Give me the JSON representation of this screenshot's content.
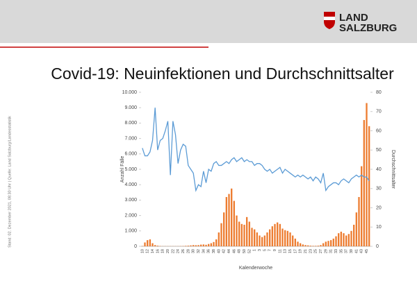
{
  "header": {
    "logo_line1": "LAND",
    "logo_line2": "SALZBURG"
  },
  "footnote": "Stand: 02. Dezember 2021, 08:30 Uhr | Quelle: Land Salzburg/Landesstatistik",
  "chart_data": {
    "type": "bar-line",
    "title": "Covid-19: Neuinfektionen und Durchschnittsalter",
    "x_label": "Kalenderwoche",
    "y_label": "Anzahl Fälle",
    "y2_label": "Durchschnittsalter",
    "categories": [
      10,
      null,
      12,
      null,
      14,
      null,
      16,
      null,
      18,
      null,
      20,
      null,
      22,
      null,
      24,
      null,
      26,
      null,
      28,
      null,
      30,
      null,
      32,
      null,
      34,
      null,
      36,
      null,
      38,
      null,
      40,
      null,
      42,
      null,
      44,
      null,
      46,
      null,
      48,
      null,
      50,
      null,
      52,
      null,
      1,
      null,
      3,
      null,
      5,
      null,
      7,
      null,
      9,
      null,
      11,
      null,
      13,
      null,
      15,
      null,
      17,
      null,
      19,
      null,
      21,
      null,
      23,
      null,
      25,
      null,
      27,
      null,
      29,
      null,
      31,
      null,
      33,
      null,
      35,
      null,
      37,
      null,
      39,
      null,
      41,
      null,
      43,
      null,
      45,
      null
    ],
    "series": [
      {
        "name": "Neuinfektionen",
        "color": "#ed7d31",
        "values": [
          20,
          250,
          400,
          450,
          200,
          80,
          40,
          20,
          10,
          10,
          10,
          10,
          10,
          10,
          10,
          15,
          20,
          30,
          40,
          60,
          80,
          70,
          80,
          110,
          120,
          100,
          150,
          200,
          280,
          450,
          900,
          1500,
          2200,
          3200,
          3400,
          3750,
          2950,
          2000,
          1600,
          1450,
          1400,
          1900,
          1600,
          1200,
          1100,
          900,
          700,
          600,
          700,
          900,
          1100,
          1300,
          1450,
          1550,
          1450,
          1150,
          1050,
          1000,
          900,
          700,
          500,
          300,
          200,
          120,
          80,
          60,
          40,
          30,
          30,
          40,
          80,
          200,
          300,
          350,
          400,
          500,
          650,
          850,
          950,
          850,
          700,
          800,
          1000,
          1400,
          2200,
          3200,
          5200,
          8200,
          9300,
          7800
        ]
      },
      {
        "name": "Durchschnittsalter",
        "color": "#5b9bd5",
        "axis": "y2",
        "values": [
          51,
          47,
          47,
          49,
          55,
          72,
          50,
          55,
          56,
          60,
          65,
          37,
          65,
          58,
          43,
          50,
          53,
          52,
          42,
          40,
          38,
          29,
          32,
          31,
          39,
          33,
          40,
          39,
          43,
          44,
          42,
          42,
          43,
          44,
          43,
          45,
          46,
          44,
          45,
          46,
          44,
          45,
          44,
          44,
          42,
          43,
          43,
          42,
          40,
          39,
          40,
          38,
          39,
          40,
          41,
          38,
          40,
          39,
          38,
          37,
          36,
          37,
          36,
          37,
          36,
          35,
          36,
          34,
          36,
          35,
          33,
          38,
          29,
          31,
          32,
          33,
          33,
          32,
          34,
          35,
          34,
          33,
          35,
          36,
          37,
          36,
          37,
          36,
          36,
          34
        ]
      }
    ],
    "ylim": [
      0,
      10000
    ],
    "yticks": [
      0,
      {
        "value": 1000,
        "label": "1.000"
      },
      {
        "value": 2000,
        "label": "2.000"
      },
      {
        "value": 3000,
        "label": "3.000"
      },
      {
        "value": 4000,
        "label": "4.000"
      },
      {
        "value": 5000,
        "label": "5.000"
      },
      {
        "value": 6000,
        "label": "6.000"
      },
      {
        "value": 7000,
        "label": "7.000"
      },
      {
        "value": 8000,
        "label": "8.000"
      },
      {
        "value": 9000,
        "label": "9.000"
      },
      {
        "value": 10000,
        "label": "10.000"
      }
    ],
    "y2lim": [
      0,
      80
    ],
    "y2ticks": [
      0,
      10,
      20,
      30,
      40,
      50,
      60,
      70,
      80
    ]
  }
}
